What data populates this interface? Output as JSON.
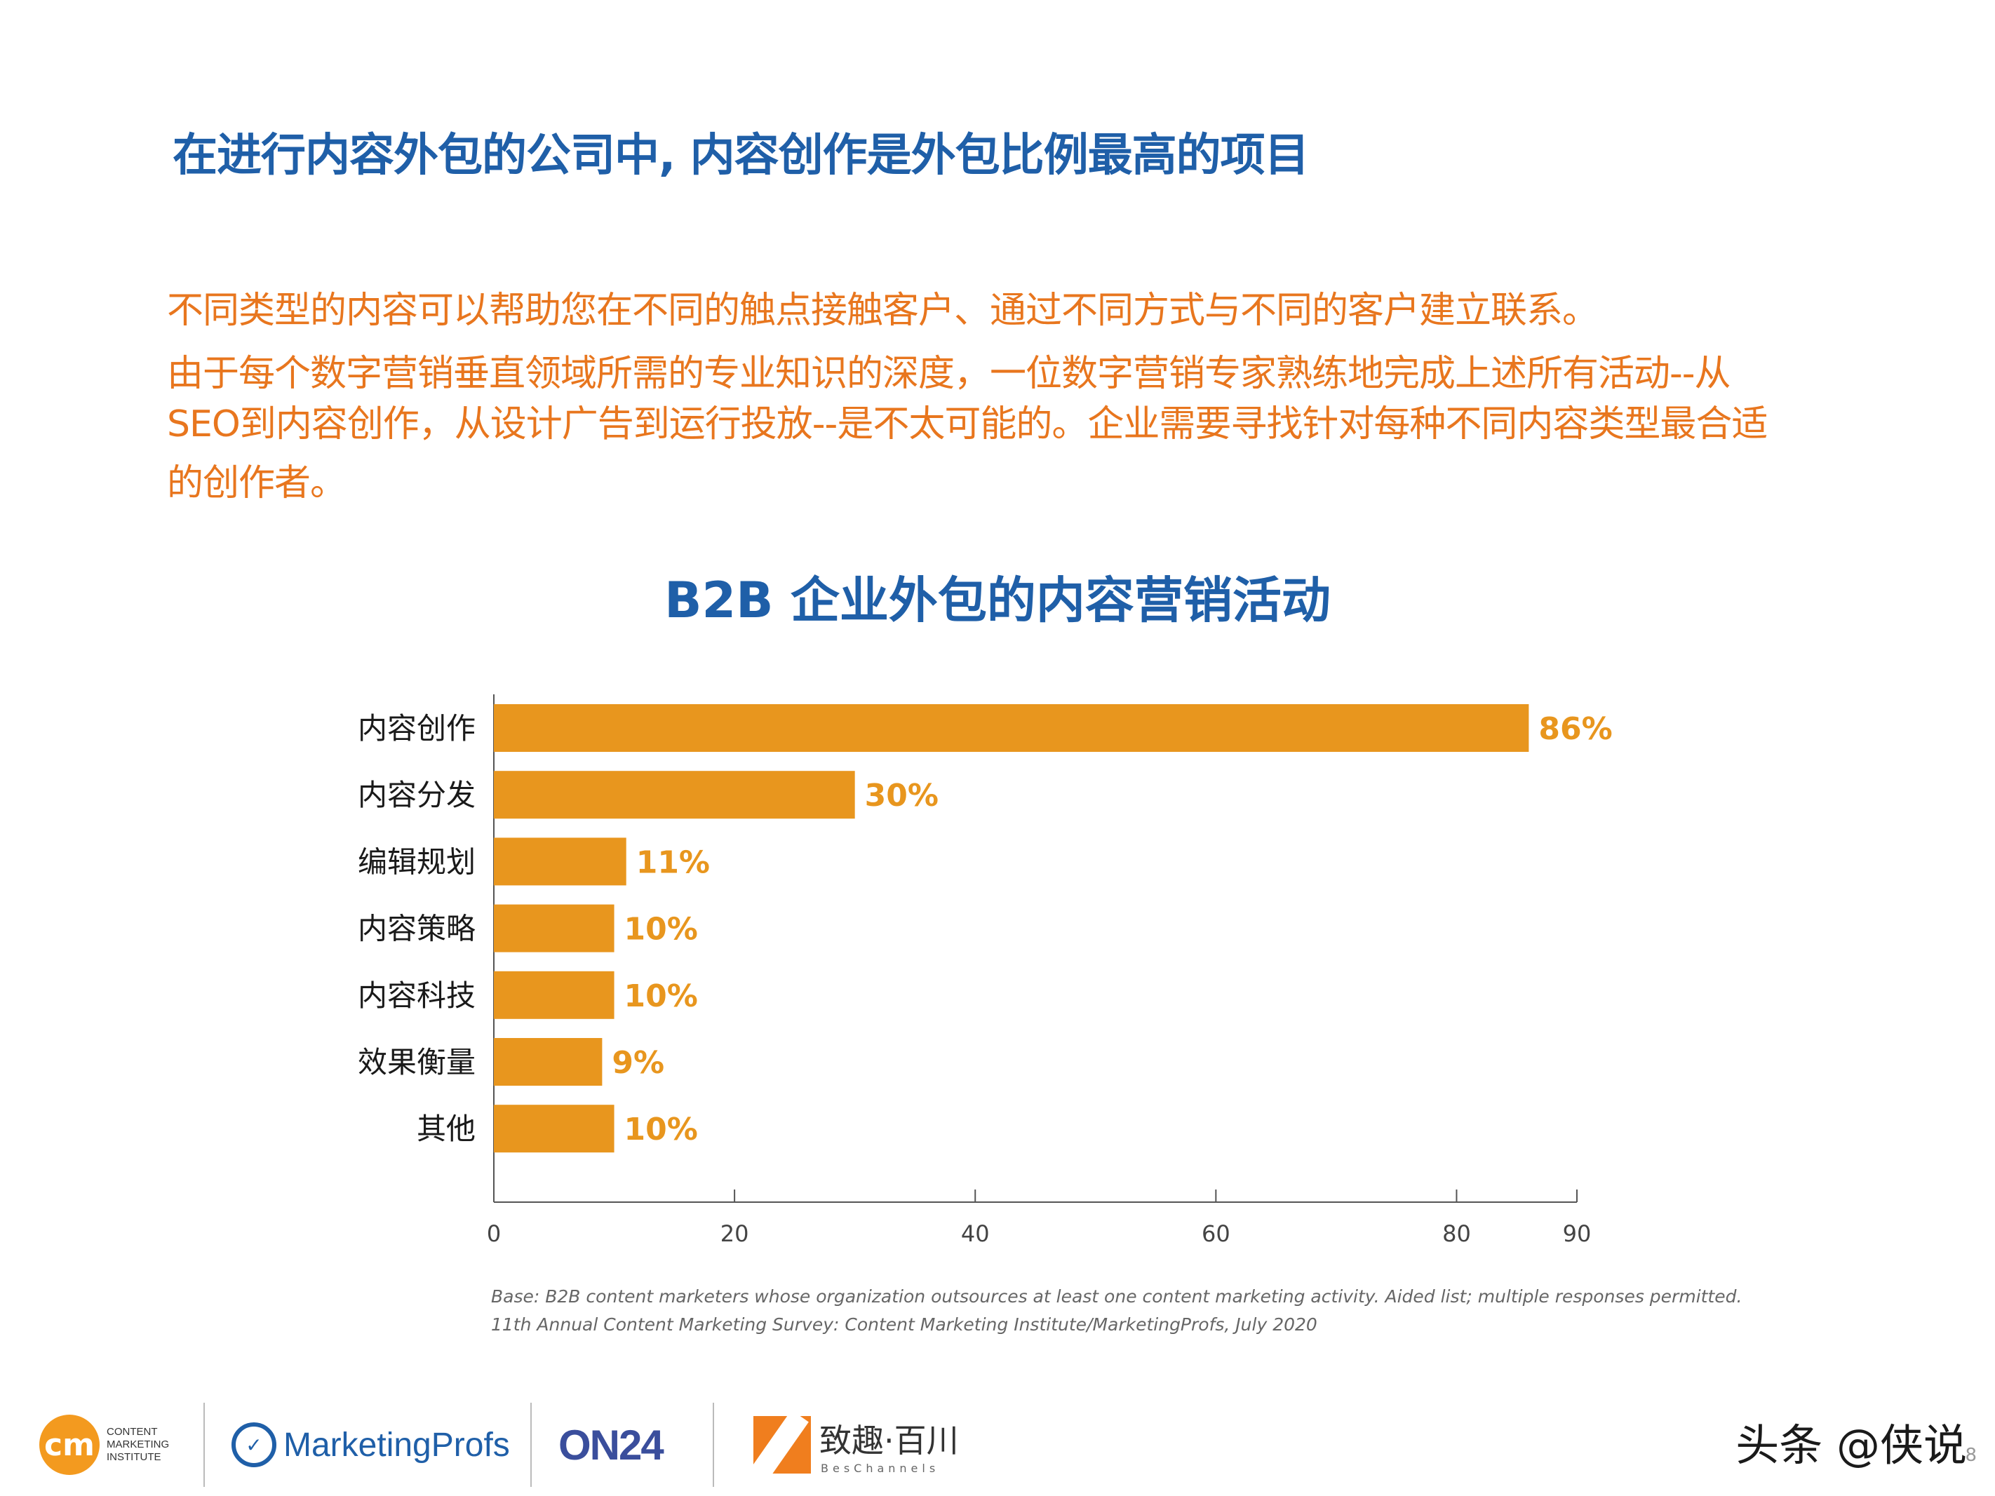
{
  "headline": "在进行内容外包的公司中, 内容创作是外包比例最高的项目",
  "body_lines": [
    "不同类型的内容可以帮助您在不同的触点接触客户、通过不同方式与不同的客户建立联系。",
    "由于每个数字营销垂直领域所需的专业知识的深度，一位数字营销专家熟练地完成上述所有活动--从",
    "SEO到内容创作，从设计广告到运行投放--是不太可能的。企业需要寻找针对每种不同内容类型最合适",
    "的创作者。"
  ],
  "chart_data": {
    "type": "bar",
    "orientation": "horizontal",
    "title": "B2B 企业外包的内容营销活动",
    "categories": [
      "内容创作",
      "内容分发",
      "编辑规划",
      "内容策略",
      "内容科技",
      "效果衡量",
      "其他"
    ],
    "values": [
      86,
      30,
      11,
      10,
      10,
      9,
      10
    ],
    "value_labels": [
      "86%",
      "30%",
      "11%",
      "10%",
      "10%",
      "9%",
      "10%"
    ],
    "xlim": [
      0,
      90
    ],
    "xticks": [
      0,
      20,
      40,
      60,
      80,
      90
    ],
    "grid": false,
    "legend": "none",
    "bar_color": "#e8961e"
  },
  "notes": [
    "Base: B2B content marketers whose organization outsources at least one content marketing activity. Aided list; multiple responses permitted.",
    "11th Annual Content Marketing Survey: Content Marketing Institute/MarketingProfs, July 2020"
  ],
  "logos": {
    "cmi_mark": "cm",
    "cmi_lines": [
      "CONTENT",
      "MARKETING",
      "INSTITUTE"
    ],
    "marketingprofs": "MarketingProfs",
    "on24": "ON24",
    "beschannels_name": "致趣·百川",
    "beschannels_sub": "BesChannels"
  },
  "watermark": "头条 @侠说",
  "page_number": "8"
}
